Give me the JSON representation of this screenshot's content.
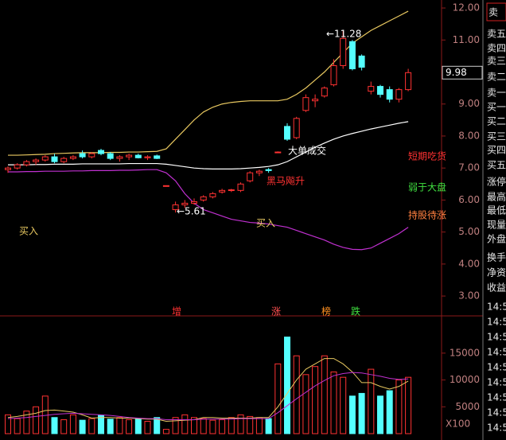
{
  "chart_data": [
    {
      "type": "candlestick",
      "categories": [
        null,
        null,
        null,
        null,
        null,
        null,
        null,
        null,
        null,
        null,
        null,
        null,
        null,
        null,
        null,
        null,
        null,
        null,
        null,
        null,
        null,
        null,
        null,
        null,
        null,
        null,
        null,
        null,
        null,
        null,
        null,
        null,
        null,
        null,
        null,
        null,
        null,
        null,
        null,
        null,
        null,
        null,
        null,
        null
      ],
      "open": [
        6.95,
        7.0,
        7.1,
        7.2,
        7.25,
        7.35,
        7.2,
        7.3,
        7.45,
        7.35,
        7.55,
        7.45,
        7.3,
        7.35,
        7.4,
        7.32,
        7.38,
        6.45,
        5.7,
        5.85,
        5.9,
        6.0,
        6.1,
        6.25,
        6.3,
        6.3,
        6.6,
        6.85,
        6.95,
        7.5,
        8.3,
        7.95,
        8.8,
        9.1,
        9.25,
        9.6,
        10.2,
        10.95,
        10.5,
        9.4,
        9.55,
        9.45,
        9.15,
        9.45
      ],
      "high": [
        7.05,
        7.15,
        7.25,
        7.3,
        7.4,
        7.45,
        7.35,
        7.4,
        7.55,
        7.5,
        7.6,
        7.5,
        7.4,
        7.45,
        7.45,
        7.4,
        7.42,
        6.45,
        5.95,
        6.0,
        6.05,
        6.15,
        6.25,
        6.35,
        6.35,
        6.55,
        6.9,
        6.95,
        7.0,
        7.52,
        8.4,
        8.6,
        9.3,
        9.3,
        9.55,
        10.4,
        11.28,
        11.0,
        10.55,
        9.7,
        9.6,
        9.55,
        9.5,
        10.1
      ],
      "low": [
        6.85,
        6.95,
        7.05,
        7.1,
        7.2,
        7.15,
        7.15,
        7.25,
        7.3,
        7.3,
        7.4,
        7.25,
        7.2,
        7.25,
        7.3,
        7.25,
        7.28,
        6.45,
        5.61,
        5.75,
        5.85,
        5.95,
        6.05,
        6.2,
        6.25,
        6.25,
        6.55,
        6.75,
        6.85,
        7.48,
        7.85,
        7.9,
        8.75,
        8.9,
        9.2,
        9.55,
        10.1,
        10.05,
        10.05,
        9.3,
        9.2,
        9.05,
        9.05,
        9.4
      ],
      "close": [
        7.0,
        7.1,
        7.2,
        7.25,
        7.35,
        7.2,
        7.3,
        7.35,
        7.35,
        7.45,
        7.45,
        7.3,
        7.35,
        7.4,
        7.32,
        7.35,
        7.3,
        6.45,
        5.85,
        5.9,
        5.95,
        6.1,
        6.2,
        6.3,
        6.32,
        6.5,
        6.85,
        6.9,
        6.92,
        7.5,
        7.9,
        8.55,
        9.2,
        9.15,
        9.5,
        10.2,
        11.05,
        10.1,
        10.15,
        9.55,
        9.3,
        9.15,
        9.45,
        9.98
      ],
      "up_color": "#ff3232",
      "down_color": "#54ffff",
      "lines": [
        {
          "color": "#e8c860",
          "values": [
            7.4,
            7.4,
            7.41,
            7.42,
            7.43,
            7.45,
            7.46,
            7.47,
            7.48,
            7.48,
            7.48,
            7.49,
            7.49,
            7.5,
            7.5,
            7.51,
            7.52,
            7.6,
            7.9,
            8.2,
            8.5,
            8.75,
            8.9,
            9.0,
            9.05,
            9.08,
            9.1,
            9.1,
            9.1,
            9.1,
            9.15,
            9.3,
            9.5,
            9.75,
            10.0,
            10.3,
            10.6,
            10.9,
            11.1,
            11.3,
            11.45,
            11.6,
            11.75,
            11.9
          ]
        },
        {
          "color": "#ffffff",
          "values": [
            7.1,
            7.1,
            7.1,
            7.11,
            7.11,
            7.12,
            7.12,
            7.12,
            7.13,
            7.13,
            7.13,
            7.13,
            7.13,
            7.14,
            7.14,
            7.14,
            7.14,
            7.12,
            7.08,
            7.04,
            7.0,
            6.98,
            6.97,
            6.97,
            6.97,
            6.98,
            7.0,
            7.02,
            7.05,
            7.1,
            7.2,
            7.35,
            7.5,
            7.65,
            7.78,
            7.9,
            8.0,
            8.08,
            8.15,
            8.22,
            8.28,
            8.34,
            8.4,
            8.45
          ]
        },
        {
          "color": "#c030d0",
          "values": [
            6.88,
            6.88,
            6.89,
            6.89,
            6.9,
            6.9,
            6.9,
            6.91,
            6.91,
            6.92,
            6.92,
            6.92,
            6.93,
            6.93,
            6.94,
            6.95,
            6.95,
            6.85,
            6.6,
            6.2,
            5.9,
            5.7,
            5.6,
            5.5,
            5.4,
            5.35,
            5.3,
            5.28,
            5.25,
            5.2,
            5.15,
            5.05,
            4.95,
            4.85,
            4.75,
            4.62,
            4.52,
            4.46,
            4.45,
            4.5,
            4.65,
            4.8,
            4.95,
            5.15
          ]
        }
      ],
      "ylim": [
        2.43,
        12.25
      ],
      "yticks": [
        {
          "value": 12,
          "label": "12.00"
        },
        {
          "value": 11,
          "label": "11.00"
        },
        {
          "value": 10,
          "label": "10.00"
        },
        {
          "value": 9,
          "label": "9.00"
        },
        {
          "value": 8,
          "label": "8.00"
        },
        {
          "value": 7,
          "label": "7.00"
        },
        {
          "value": 6,
          "label": "6.00"
        },
        {
          "value": 5,
          "label": "5.00"
        },
        {
          "value": 4,
          "label": "4.00"
        },
        {
          "value": 3,
          "label": "3.00"
        }
      ],
      "current_price": 9.98,
      "annotations": [
        "←11.28",
        "←5.61",
        "买入",
        "买入",
        "大单成交",
        "黑马飚升",
        "短期吃货",
        "弱于大盘",
        "持股待涨"
      ]
    },
    {
      "type": "volume",
      "values": [
        3500,
        2800,
        4200,
        5000,
        7000,
        3000,
        2600,
        3500,
        2500,
        2800,
        3400,
        2700,
        3000,
        2600,
        2800,
        2300,
        3000,
        800,
        3000,
        3500,
        3000,
        2800,
        2500,
        2600,
        3000,
        3500,
        3200,
        3000,
        2800,
        13000,
        18000,
        14500,
        11000,
        12500,
        14500,
        11500,
        10500,
        7000,
        7500,
        12000,
        7000,
        8000,
        10000,
        10500
      ],
      "lines": [
        {
          "color": "#e8c860",
          "values": [
            3000,
            3200,
            3500,
            3800,
            4300,
            4400,
            4200,
            4000,
            3500,
            2900,
            3000,
            3000,
            2900,
            2900,
            2800,
            2700,
            2700,
            2300,
            2400,
            2500,
            2600,
            3000,
            3000,
            2900,
            2900,
            2900,
            2900,
            3000,
            3000,
            5000,
            7500,
            10000,
            12000,
            13000,
            14000,
            14000,
            13000,
            11500,
            9500,
            9500,
            8800,
            8300,
            8800,
            9800
          ]
        },
        {
          "color": "#c030d0",
          "values": [
            2800,
            2900,
            3000,
            3200,
            3400,
            3600,
            3700,
            3800,
            3700,
            3600,
            3500,
            3400,
            3200,
            3000,
            2900,
            2800,
            2800,
            2600,
            2600,
            2600,
            2600,
            2700,
            2700,
            2700,
            2700,
            2800,
            2800,
            2800,
            2800,
            3900,
            5200,
            6500,
            7700,
            8900,
            9900,
            10800,
            11200,
            11400,
            11300,
            11000,
            10700,
            10300,
            10100,
            10200
          ]
        }
      ],
      "ylim": [
        0,
        21500
      ],
      "yticks": [
        15000,
        10000,
        5000
      ],
      "unit": "X100",
      "signals": [
        "增",
        "涨",
        "榜",
        "跌"
      ]
    }
  ],
  "quote_panel": {
    "header": "卖",
    "labels": [
      "卖五",
      "卖四",
      "卖三",
      "卖二",
      "卖一",
      "买一",
      "买二",
      "买三",
      "买四",
      "买五",
      "涨停",
      "最高",
      "最低",
      "现量",
      "外盘",
      "换手",
      "净资",
      "收益"
    ],
    "times": [
      "14:5",
      "14:5",
      "14:5",
      "14:5",
      "14:5",
      "14:5",
      "14:5",
      "14:5",
      "14:5"
    ]
  }
}
